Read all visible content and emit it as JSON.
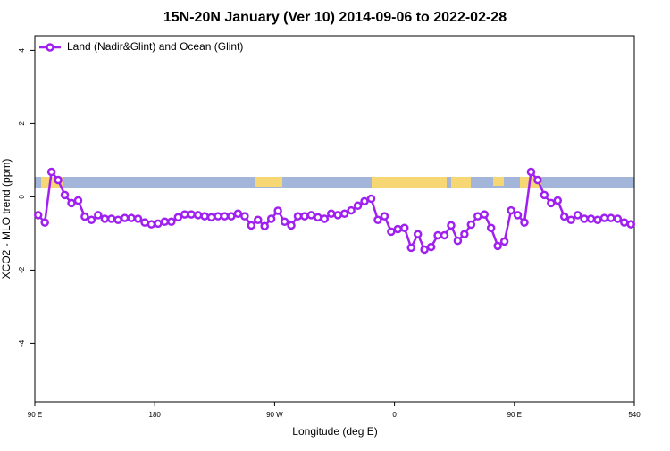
{
  "chart_data": {
    "type": "line",
    "title": "15N-20N January (Ver 10)   2014-09-06 to 2022-02-28",
    "x_label": "Longitude (deg E)",
    "y_label": "XCO2 - MLO trend (ppm)",
    "xlim": [
      90,
      540
    ],
    "ylim": [
      -5.6,
      4.4
    ],
    "xticks": [
      {
        "value": 90,
        "label": "90 E"
      },
      180,
      {
        "value": 270,
        "label": "90 W"
      },
      {
        "value": 360,
        "label": "0"
      },
      {
        "value": 450,
        "label": "90 E"
      },
      540
    ],
    "yticks": [
      -4,
      -2,
      0,
      2,
      4
    ],
    "legend": "top-left",
    "x": [
      92.5,
      97.5,
      102.5,
      107.5,
      112.5,
      117.5,
      122.5,
      127.5,
      132.5,
      137.5,
      142.5,
      147.5,
      152.5,
      157.5,
      162.5,
      167.5,
      172.5,
      177.5,
      182.5,
      187.5,
      192.5,
      197.5,
      202.5,
      207.5,
      212.5,
      217.5,
      222.5,
      227.5,
      232.5,
      237.5,
      242.5,
      247.5,
      252.5,
      257.5,
      262.5,
      267.5,
      272.5,
      277.5,
      282.5,
      287.5,
      292.5,
      297.5,
      302.5,
      307.5,
      312.5,
      317.5,
      322.5,
      327.5,
      332.5,
      337.5,
      342.5,
      347.5,
      352.5,
      357.5,
      362.5,
      367.5,
      372.5,
      377.5,
      382.5,
      387.5,
      392.5,
      397.5,
      402.5,
      407.5,
      412.5,
      417.5,
      422.5,
      427.5,
      432.5,
      437.5,
      442.5,
      447.5,
      452.5,
      457.5,
      462.5,
      467.5,
      472.5,
      477.5,
      482.5,
      487.5,
      492.5,
      497.5,
      502.5,
      507.5,
      512.5,
      517.5,
      522.5,
      527.5,
      532.5,
      537.5
    ],
    "series": [
      {
        "name": "Land (Nadir&Glint) and Ocean (Glint)",
        "color": "#a020f0",
        "values": [
          -0.5,
          -0.7,
          0.68,
          0.46,
          0.05,
          -0.17,
          -0.1,
          -0.54,
          -0.63,
          -0.5,
          -0.6,
          -0.6,
          -0.63,
          -0.58,
          -0.58,
          -0.6,
          -0.7,
          -0.75,
          -0.73,
          -0.68,
          -0.68,
          -0.56,
          -0.48,
          -0.48,
          -0.5,
          -0.53,
          -0.56,
          -0.53,
          -0.53,
          -0.53,
          -0.46,
          -0.53,
          -0.78,
          -0.63,
          -0.8,
          -0.6,
          -0.38,
          -0.68,
          -0.78,
          -0.53,
          -0.53,
          -0.5,
          -0.56,
          -0.6,
          -0.46,
          -0.5,
          -0.46,
          -0.37,
          -0.24,
          -0.12,
          -0.05,
          -0.63,
          -0.53,
          -0.95,
          -0.88,
          -0.85,
          -1.39,
          -1.02,
          -1.44,
          -1.37,
          -1.05,
          -1.05,
          -0.78,
          -1.2,
          -1.02,
          -0.76,
          -0.53,
          -0.48,
          -0.85,
          -1.34,
          -1.22,
          -0.37,
          -0.5,
          -0.7,
          0.68,
          0.46,
          0.05,
          -0.17,
          -0.1,
          -0.54,
          -0.63,
          -0.5,
          -0.6,
          -0.6,
          -0.63,
          -0.58,
          -0.58,
          -0.6,
          -0.7,
          -0.75
        ]
      }
    ]
  }
}
